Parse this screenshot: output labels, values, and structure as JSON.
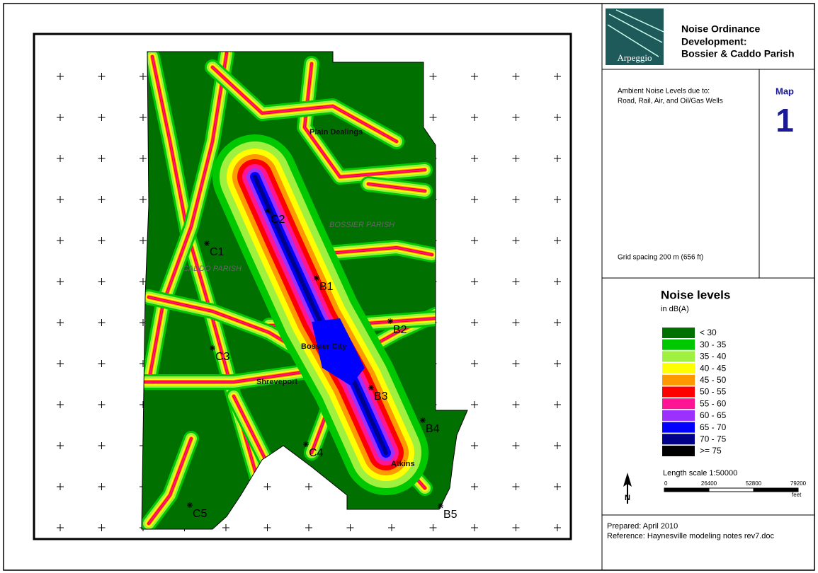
{
  "header": {
    "title_lines": [
      "Noise Ordinance",
      "Development:",
      "Bossier & Caddo Parish"
    ],
    "logo": "Arpeggio"
  },
  "description": {
    "lines": [
      "Ambient Noise Levels due to:",
      "Road, Rail, Air, and Oil/Gas Wells"
    ],
    "grid_spacing": "Grid spacing 200 m (656 ft)"
  },
  "map_id": {
    "label": "Map",
    "number": "1"
  },
  "legend": {
    "title": "Noise levels",
    "units": "in dB(A)",
    "items": [
      {
        "label": "< 30",
        "color": "#007000"
      },
      {
        "label": "30 - 35",
        "color": "#00c800"
      },
      {
        "label": "35 - 40",
        "color": "#a0f040"
      },
      {
        "label": "40 - 45",
        "color": "#ffff00"
      },
      {
        "label": "45 - 50",
        "color": "#ff9900"
      },
      {
        "label": "50 - 55",
        "color": "#ff0000"
      },
      {
        "label": "55 - 60",
        "color": "#ff1493"
      },
      {
        "label": "60 - 65",
        "color": "#9b30ff"
      },
      {
        "label": "65 - 70",
        "color": "#0000ff"
      },
      {
        "label": "70 - 75",
        "color": "#00008b"
      },
      {
        "label": ">= 75",
        "color": "#000000"
      }
    ]
  },
  "scale": {
    "label": "Length scale 1:50000",
    "ticks": [
      "0",
      "26400",
      "52800",
      "79200"
    ],
    "unit": "feet",
    "north": "N"
  },
  "footer": {
    "prepared": "Prepared: April 2010",
    "reference": "Reference: Haynesville modeling notes rev7.doc"
  },
  "map_labels": {
    "places": [
      "Plain Dealings",
      "BOSSIER PARISH",
      "CADDO PARISH",
      "Bossier City",
      "Shreveport",
      "Atkins"
    ],
    "sites": [
      "C1",
      "C2",
      "C3",
      "C4",
      "C5",
      "B1",
      "B2",
      "B3",
      "B4",
      "B5"
    ]
  }
}
